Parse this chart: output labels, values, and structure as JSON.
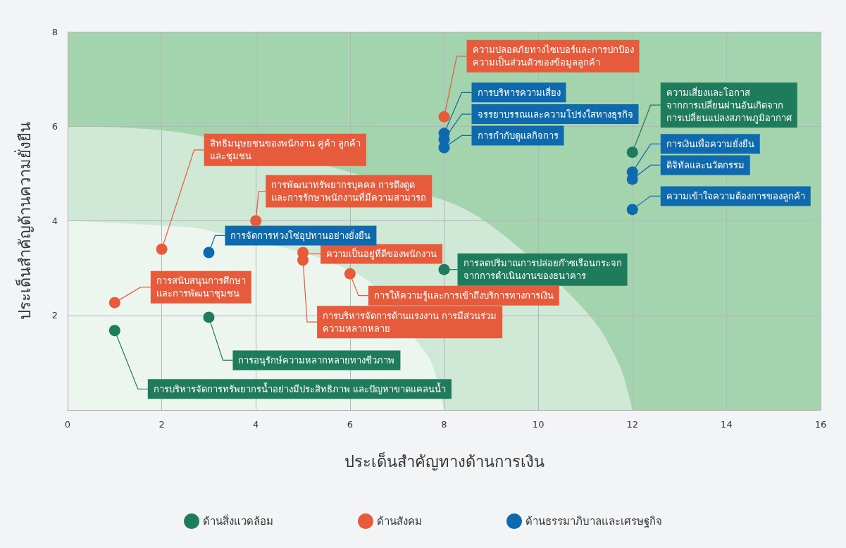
{
  "chart_data": {
    "type": "scatter",
    "xlabel": "ประเด็นสำคัญทางด้านการเงิน",
    "ylabel": "ประเด็นสำคัญด้านความยั่งยืน",
    "xlim": [
      0,
      16
    ],
    "xticks": [
      0,
      2,
      4,
      6,
      8,
      10,
      12,
      14,
      16
    ],
    "ylim": [
      0,
      8
    ],
    "yticks": [
      2,
      4,
      6,
      8
    ],
    "grid": true,
    "legend": "bottom",
    "marker": "circle",
    "series": [
      {
        "type": "area",
        "marker": "none",
        "color": "#d0e9d6",
        "x": [
          0,
          2.5,
          7.8,
          9,
          11,
          11.7,
          12
        ],
        "values": [
          6.0,
          5.85,
          4.5,
          3.9,
          2.1,
          1.0,
          0
        ]
      },
      {
        "type": "area",
        "marker": "none",
        "color": "#ecf6ee",
        "x": [
          0,
          2,
          3,
          6.2,
          7.5,
          7.75,
          8
        ],
        "values": [
          4.0,
          3.9,
          3.8,
          2.85,
          1.35,
          0.95,
          0
        ]
      },
      {
        "name": "ด้านสิ่งแวดล้อม",
        "color": "#1e7b5c",
        "x": [
          1,
          3,
          8,
          12
        ],
        "values": [
          1.68,
          1.96,
          2.97,
          5.45
        ]
      },
      {
        "name": "ด้านสังคม",
        "color": "#e55b3c",
        "x": [
          1,
          2,
          4,
          5,
          5,
          6,
          8
        ],
        "values": [
          2.27,
          3.4,
          4.0,
          3.33,
          3.17,
          2.88,
          6.2
        ]
      },
      {
        "name": "ด้านธรรมาภิบาลและเศรษฐกิจ",
        "color": "#0e6aad",
        "x": [
          3,
          8,
          8,
          8,
          12,
          12,
          12
        ],
        "values": [
          3.33,
          5.85,
          5.72,
          5.55,
          5.03,
          4.88,
          4.24
        ]
      }
    ],
    "annotations": [
      {
        "text": "การบริหารจัดการทรัพยากรน้ำอย่างมีประสิทธิภาพ และปัญหาขาดแคลนน้ำ",
        "x": 1,
        "y": 1.68
      },
      {
        "text": "การอนุรักษ์ความหลากหลายทางชีวภาพ",
        "x": 3,
        "y": 1.96
      },
      {
        "text": "การลดปริมาณการปล่อยก๊าซเรือนกระจก\nจากการดำเนินงานของธนาคาร",
        "x": 8,
        "y": 2.97
      },
      {
        "text": "ความเสี่ยงและโอกาส\nจากการเปลี่ยนผ่านอันเกิดจาก\nการเปลี่ยนแปลงสภาพภูมิอากาศ",
        "x": 12,
        "y": 5.45
      },
      {
        "text": "การสนับสนุนการศึกษา\nและการพัฒนาชุมชน",
        "x": 1,
        "y": 2.27
      },
      {
        "text": "สิทธิมนุษยชนของพนักงาน คู่ค้า ลูกค้า\nและชุมชน",
        "x": 2,
        "y": 3.4
      },
      {
        "text": "การพัฒนาทรัพยากรบุคคล การดึงดูด\nและการรักษาพนักงานที่มีความสามารถ",
        "x": 4,
        "y": 4.0
      },
      {
        "text": "ความเป็นอยู่ที่ดีของพนักงาน",
        "x": 5,
        "y": 3.33
      },
      {
        "text": "การบริหารจัดการด้านแรงงาน การมีส่วนร่วม\nความหลากหลาย",
        "x": 5,
        "y": 3.17
      },
      {
        "text": "การให้ความรู้และการเข้าถึงบริการทางการเงิน",
        "x": 6,
        "y": 2.88
      },
      {
        "text": "ความปลอดภัยทางไซเบอร์และการปกป้อง\nความเป็นส่วนตัวของข้อมูลลูกค้า",
        "x": 8,
        "y": 6.2
      },
      {
        "text": "การจัดการห่วงโซ่อุปทานอย่างยั่งยืน",
        "x": 3,
        "y": 3.33
      },
      {
        "text": "การบริหารความเสี่ยง",
        "x": 8,
        "y": 5.85
      },
      {
        "text": "จรรยาบรรณและความโปร่งใสทางธุรกิจ",
        "x": 8,
        "y": 5.72
      },
      {
        "text": "การกำกับดูแลกิจการ",
        "x": 8,
        "y": 5.55
      },
      {
        "text": "การเงินเพื่อความยั่งยืน",
        "x": 12,
        "y": 5.03
      },
      {
        "text": "ดิจิทัลและนวัตกรรม",
        "x": 12,
        "y": 4.88
      },
      {
        "text": "ความเข้าใจความต้องการของลูกค้า",
        "x": 12,
        "y": 4.24
      }
    ]
  }
}
